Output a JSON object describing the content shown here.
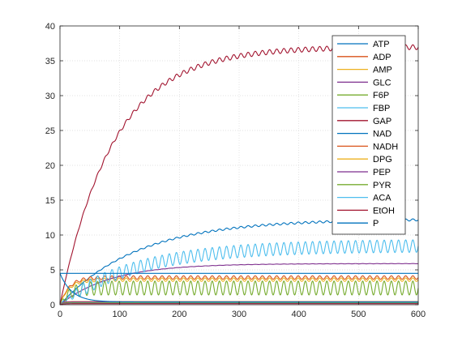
{
  "chart_data": {
    "type": "line",
    "title": "",
    "xlabel": "",
    "ylabel": "",
    "xlim": [
      0,
      600
    ],
    "ylim": [
      0,
      40
    ],
    "xticks": [
      0,
      100,
      200,
      300,
      400,
      500,
      600
    ],
    "yticks": [
      0,
      5,
      10,
      15,
      20,
      25,
      30,
      35,
      40
    ],
    "grid": true,
    "legend_position": "top-right",
    "series": [
      {
        "name": "ATP",
        "color": "#0072BD",
        "shape": "sat",
        "start": 0.0,
        "level": 12.3,
        "tau": 130,
        "amp": 0.15,
        "period": 12
      },
      {
        "name": "ADP",
        "color": "#D95319",
        "shape": "osc",
        "base": 3.9,
        "amp": 0.25,
        "period": 12,
        "start": 0.0,
        "tau": 15
      },
      {
        "name": "AMP",
        "color": "#EDB120",
        "shape": "osc",
        "base": 3.6,
        "amp": 0.25,
        "period": 12,
        "start": 0.0,
        "tau": 15
      },
      {
        "name": "GLC",
        "color": "#7E2F8E",
        "shape": "sat",
        "start": 0.0,
        "level": 5.9,
        "tau": 85,
        "amp": 0.02,
        "period": 12
      },
      {
        "name": "F6P",
        "color": "#77AC30",
        "shape": "osc",
        "base": 2.4,
        "amp": 1.0,
        "period": 12,
        "start": 0.0,
        "tau": 15
      },
      {
        "name": "FBP",
        "color": "#4DBEEE",
        "shape": "rampOsc",
        "start": 0.0,
        "level": 8.5,
        "tau": 130,
        "amp": 0.9,
        "period": 12
      },
      {
        "name": "GAP",
        "color": "#A2142F",
        "shape": "sat",
        "start": 0.0,
        "level": 37.0,
        "tau": 90,
        "amp": 0.35,
        "period": 12
      },
      {
        "name": "NAD",
        "color": "#0072BD",
        "shape": "const",
        "start": 4.5,
        "level": 4.5,
        "tau": 5,
        "amp": 0.05,
        "period": 12
      },
      {
        "name": "NADH",
        "color": "#D95319",
        "shape": "const",
        "start": 0.0,
        "level": 0.45,
        "tau": 5,
        "amp": 0.05,
        "period": 12
      },
      {
        "name": "DPG",
        "color": "#EDB120",
        "shape": "const",
        "start": 0.0,
        "level": 0.25,
        "tau": 5,
        "amp": 0.05,
        "period": 12
      },
      {
        "name": "PEP",
        "color": "#7E2F8E",
        "shape": "const",
        "start": 0.0,
        "level": 0.4,
        "tau": 5,
        "amp": 0.05,
        "period": 12
      },
      {
        "name": "PYR",
        "color": "#77AC30",
        "shape": "const",
        "start": 0.0,
        "level": 0.3,
        "tau": 5,
        "amp": 0.05,
        "period": 12
      },
      {
        "name": "ACA",
        "color": "#4DBEEE",
        "shape": "const",
        "start": 0.0,
        "level": 0.2,
        "tau": 5,
        "amp": 0.05,
        "period": 12
      },
      {
        "name": "EtOH",
        "color": "#A2142F",
        "shape": "const",
        "start": 0.0,
        "level": 0.15,
        "tau": 5,
        "amp": 0.05,
        "period": 12
      },
      {
        "name": "P",
        "color": "#0072BD",
        "shape": "decay",
        "start": 4.5,
        "level": 0.4,
        "tau": 20,
        "amp": 0.05,
        "period": 12
      }
    ]
  }
}
